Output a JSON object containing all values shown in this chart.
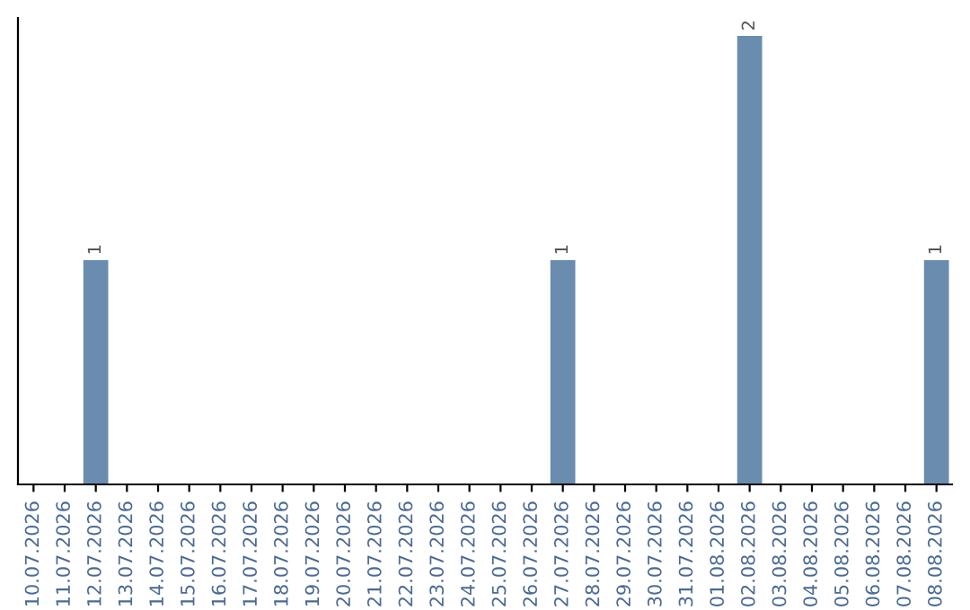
{
  "chart_data": {
    "type": "bar",
    "categories": [
      "10.07.2026",
      "11.07.2026",
      "12.07.2026",
      "13.07.2026",
      "14.07.2026",
      "15.07.2026",
      "16.07.2026",
      "17.07.2026",
      "18.07.2026",
      "19.07.2026",
      "20.07.2026",
      "21.07.2026",
      "22.07.2026",
      "23.07.2026",
      "24.07.2026",
      "25.07.2026",
      "26.07.2026",
      "27.07.2026",
      "28.07.2026",
      "29.07.2026",
      "30.07.2026",
      "31.07.2026",
      "01.08.2026",
      "02.08.2026",
      "03.08.2026",
      "04.08.2026",
      "05.08.2026",
      "06.08.2026",
      "07.08.2026",
      "08.08.2026"
    ],
    "values": [
      0,
      0,
      1,
      0,
      0,
      0,
      0,
      0,
      0,
      0,
      0,
      0,
      0,
      0,
      0,
      0,
      0,
      1,
      0,
      0,
      0,
      0,
      0,
      2,
      0,
      0,
      0,
      0,
      0,
      1
    ],
    "value_labels": [
      null,
      null,
      "1",
      null,
      null,
      null,
      null,
      null,
      null,
      null,
      null,
      null,
      null,
      null,
      null,
      null,
      null,
      "1",
      null,
      null,
      null,
      null,
      null,
      "2",
      null,
      null,
      null,
      null,
      null,
      "1"
    ],
    "color": "#6a8caf",
    "ylim": [
      0,
      2.08
    ],
    "tick_labels": "x",
    "grid": false,
    "legend": false
  }
}
